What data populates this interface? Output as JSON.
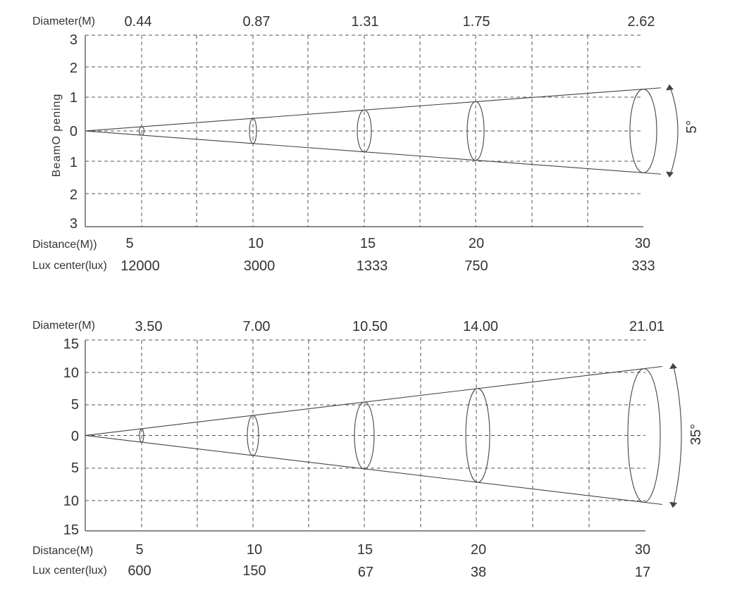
{
  "charts": [
    {
      "id": "narrow",
      "chart_data": {
        "type": "line",
        "title": "",
        "xlabel": "Distance(M))",
        "ylabel": "BeamO pening",
        "y_tick_labels": [
          "3",
          "2",
          "1",
          "0",
          "1",
          "2",
          "3"
        ],
        "ylim": [
          -3,
          3
        ],
        "beam_angle_label": "5°",
        "beam_angle_deg": 5,
        "distance": [
          5,
          10,
          15,
          20,
          30
        ],
        "diameter": [
          0.44,
          0.87,
          1.31,
          1.75,
          2.62
        ],
        "lux_center": [
          12000,
          3000,
          1333,
          750,
          333
        ],
        "grid": true
      },
      "labels": {
        "diameter_head": "Diameter(M)",
        "distance_head": "Distance(M))",
        "lux_head": "Lux center(lux)",
        "diameter_values": [
          "0.44",
          "0.87",
          "1.31",
          "1.75",
          "2.62"
        ],
        "distance_values": [
          "5",
          "10",
          "15",
          "20",
          "30"
        ],
        "lux_values": [
          "12000",
          "3000",
          "1333",
          "750",
          "333"
        ],
        "y_ticks": [
          "3",
          "2",
          "1",
          "0",
          "1",
          "2",
          "3"
        ],
        "ylabel": "BeamO pening",
        "angle": "5°"
      }
    },
    {
      "id": "wide",
      "chart_data": {
        "type": "line",
        "title": "",
        "xlabel": "Distance(M)",
        "ylabel": "",
        "y_tick_labels": [
          "15",
          "10",
          "5",
          "0",
          "5",
          "10",
          "15"
        ],
        "ylim": [
          -15,
          15
        ],
        "beam_angle_label": "35°",
        "beam_angle_deg": 35,
        "distance": [
          5,
          10,
          15,
          20,
          30
        ],
        "diameter": [
          3.5,
          7.0,
          10.5,
          14.0,
          21.01
        ],
        "lux_center": [
          600,
          150,
          67,
          38,
          17
        ],
        "grid": true
      },
      "labels": {
        "diameter_head": "Diameter(M)",
        "distance_head": "Distance(M)",
        "lux_head": "Lux center(lux)",
        "diameter_values": [
          "3.50",
          "7.00",
          "10.50",
          "14.00",
          "21.01"
        ],
        "distance_values": [
          "5",
          "10",
          "15",
          "20",
          "30"
        ],
        "lux_values": [
          "600",
          "150",
          "67",
          "38",
          "17"
        ],
        "y_ticks": [
          "15",
          "10",
          "5",
          "0",
          "5",
          "10",
          "15"
        ],
        "ylabel": "",
        "angle": "35°"
      }
    }
  ],
  "style": {
    "line_color": "#444444",
    "grid_color": "#555555",
    "text_color": "#333333"
  }
}
